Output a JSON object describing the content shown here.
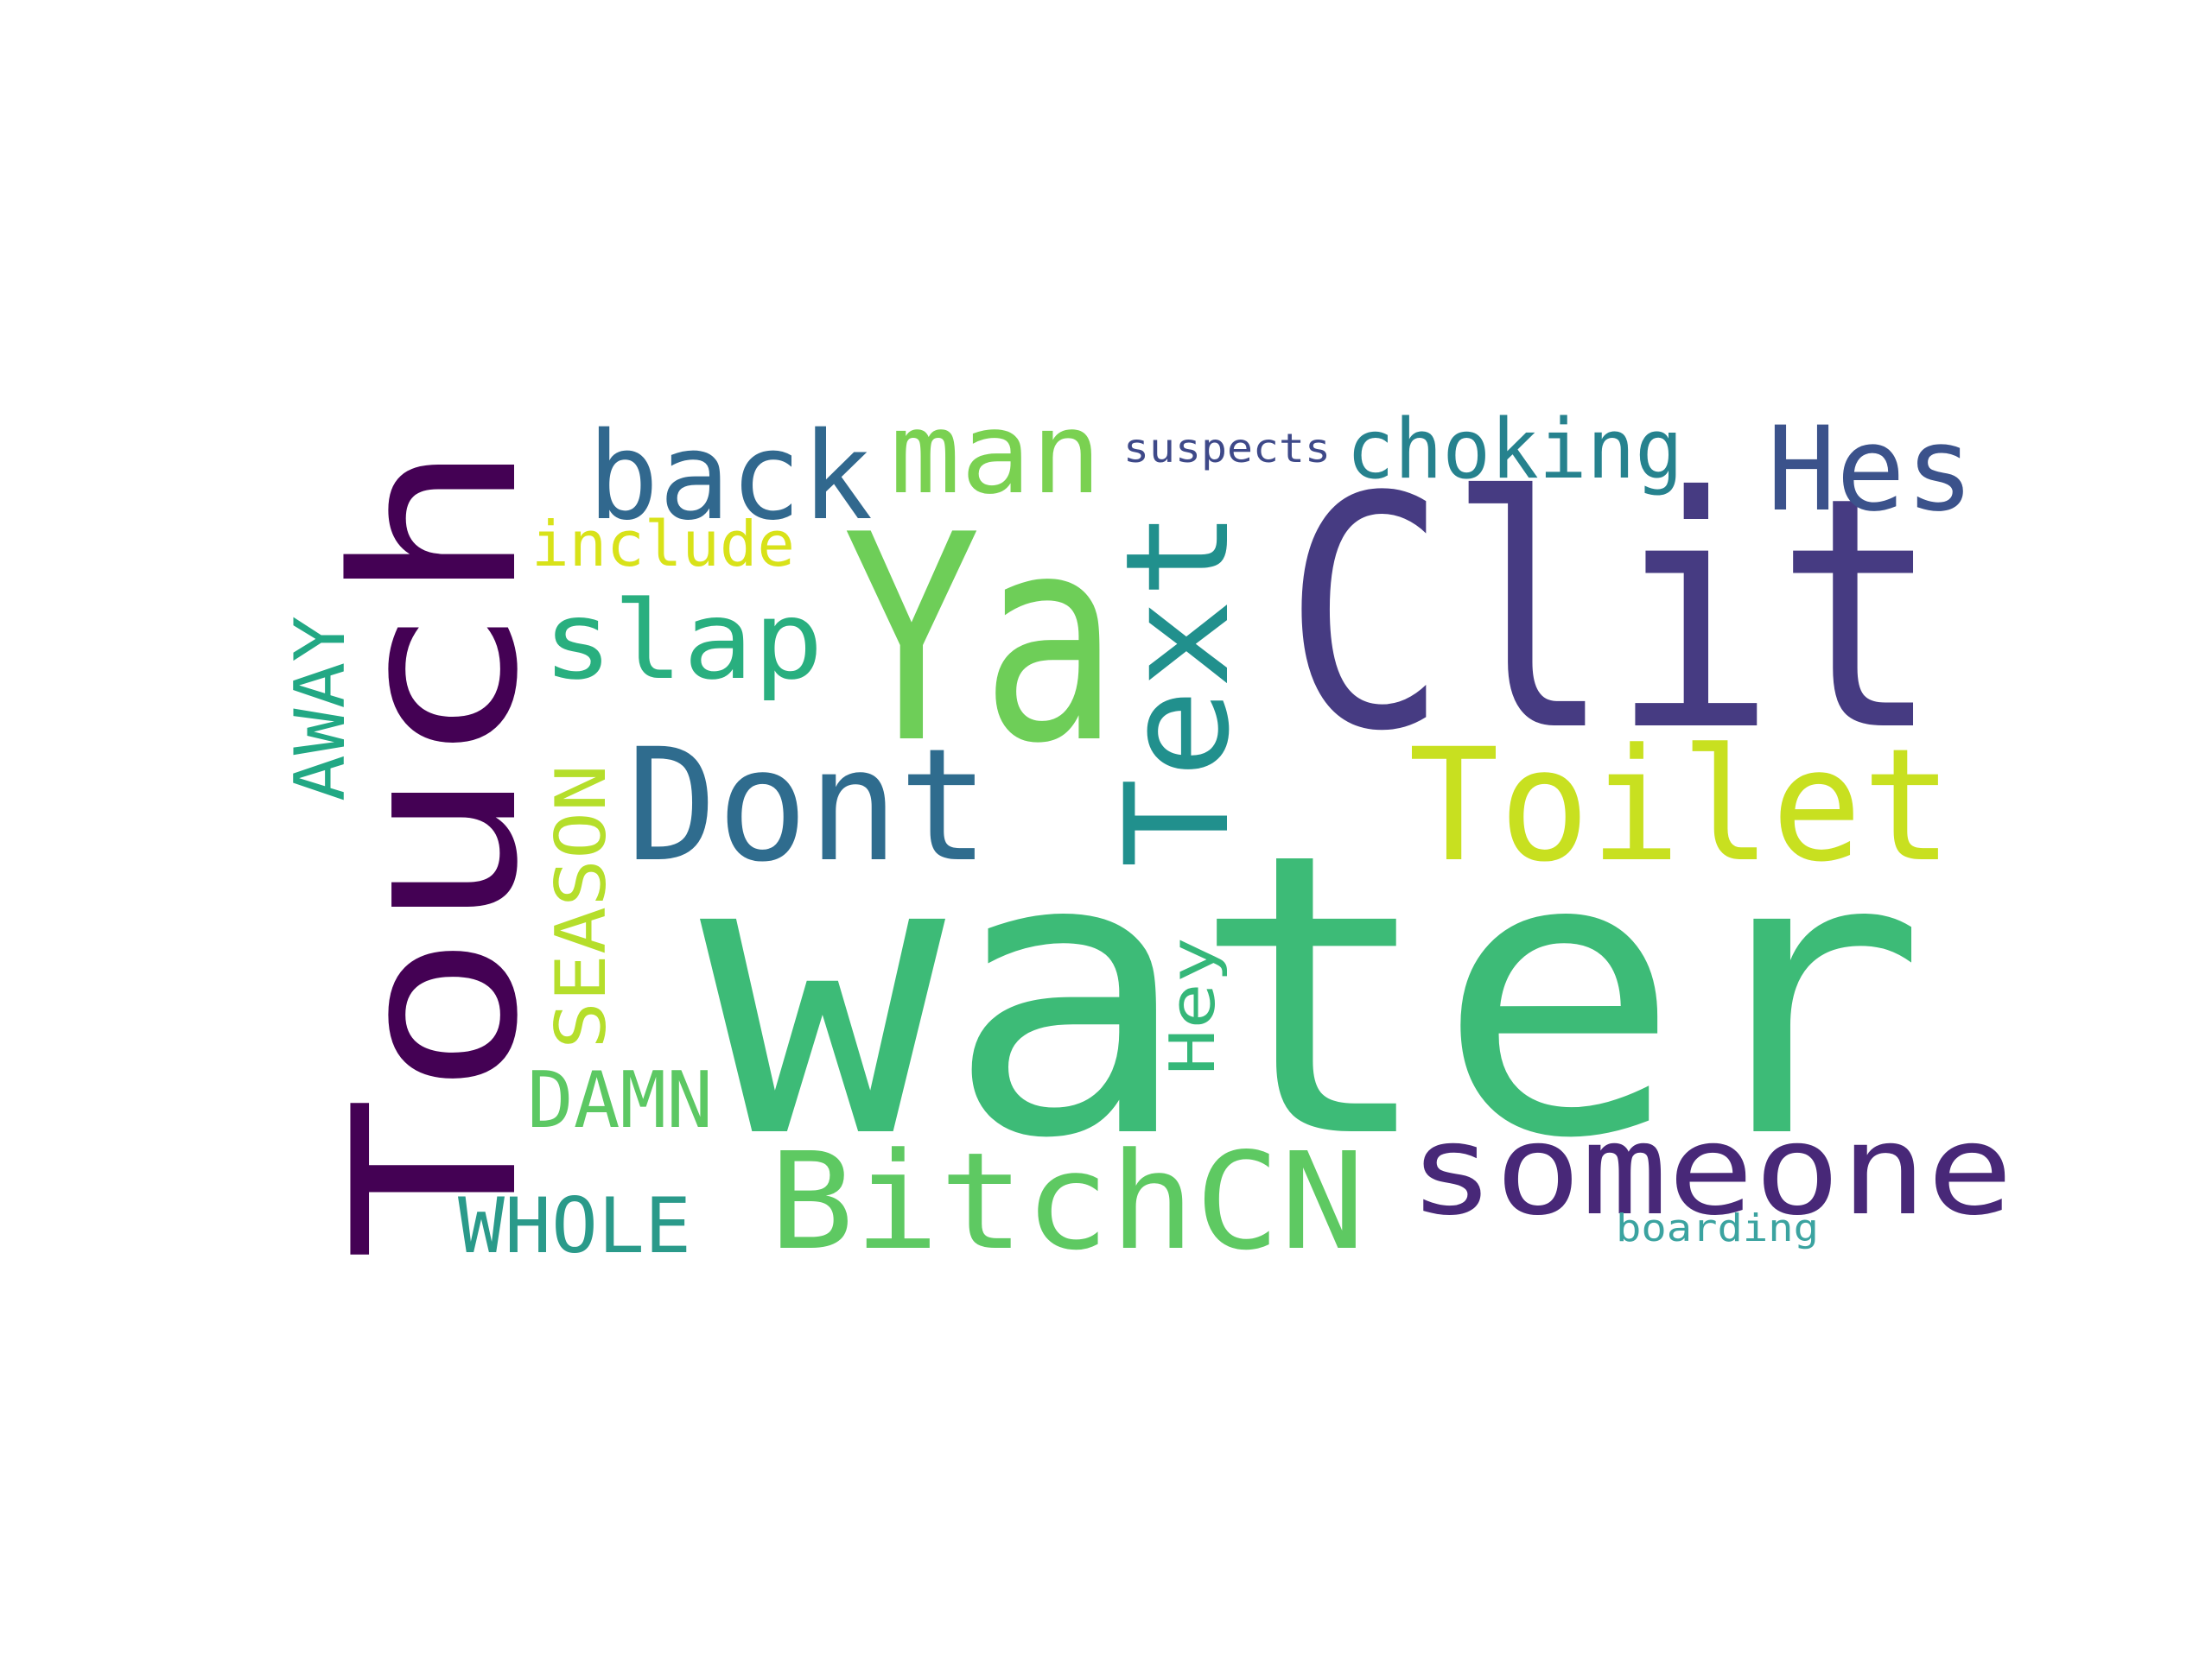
{
  "word_cloud": {
    "background_color": "#ffffff",
    "words": [
      {
        "text": "water",
        "color": "#3dbb77",
        "orientation": "horizontal"
      },
      {
        "text": "Touch",
        "color": "#440154",
        "orientation": "vertical"
      },
      {
        "text": "Clit",
        "color": "#463b82",
        "orientation": "horizontal"
      },
      {
        "text": "Ya",
        "color": "#6ece58",
        "orientation": "horizontal"
      },
      {
        "text": "Text",
        "color": "#21908d",
        "orientation": "vertical"
      },
      {
        "text": "Dont",
        "color": "#2f6c8e",
        "orientation": "horizontal"
      },
      {
        "text": "Toilet",
        "color": "#c8e020",
        "orientation": "horizontal"
      },
      {
        "text": "someone",
        "color": "#482878",
        "orientation": "horizontal"
      },
      {
        "text": "BitchCN",
        "color": "#5ec962",
        "orientation": "horizontal"
      },
      {
        "text": "back",
        "color": "#31688e",
        "orientation": "horizontal"
      },
      {
        "text": "man",
        "color": "#7ad151",
        "orientation": "horizontal"
      },
      {
        "text": "Hes",
        "color": "#3b528b",
        "orientation": "horizontal"
      },
      {
        "text": "slap",
        "color": "#29af7f",
        "orientation": "horizontal"
      },
      {
        "text": "choking",
        "color": "#26828e",
        "orientation": "horizontal"
      },
      {
        "text": "include",
        "color": "#d8e219",
        "orientation": "horizontal"
      },
      {
        "text": "suspects",
        "color": "#3e4989",
        "orientation": "horizontal"
      },
      {
        "text": "AWAY",
        "color": "#22a884",
        "orientation": "vertical"
      },
      {
        "text": "SEASON",
        "color": "#b5de2b",
        "orientation": "vertical"
      },
      {
        "text": "Hey",
        "color": "#35b779",
        "orientation": "vertical"
      },
      {
        "text": "DAMN",
        "color": "#5cc863",
        "orientation": "horizontal"
      },
      {
        "text": "WHOLE",
        "color": "#2a9a8a",
        "orientation": "horizontal"
      },
      {
        "text": "boarding",
        "color": "#3ba3a0",
        "orientation": "horizontal"
      }
    ]
  }
}
